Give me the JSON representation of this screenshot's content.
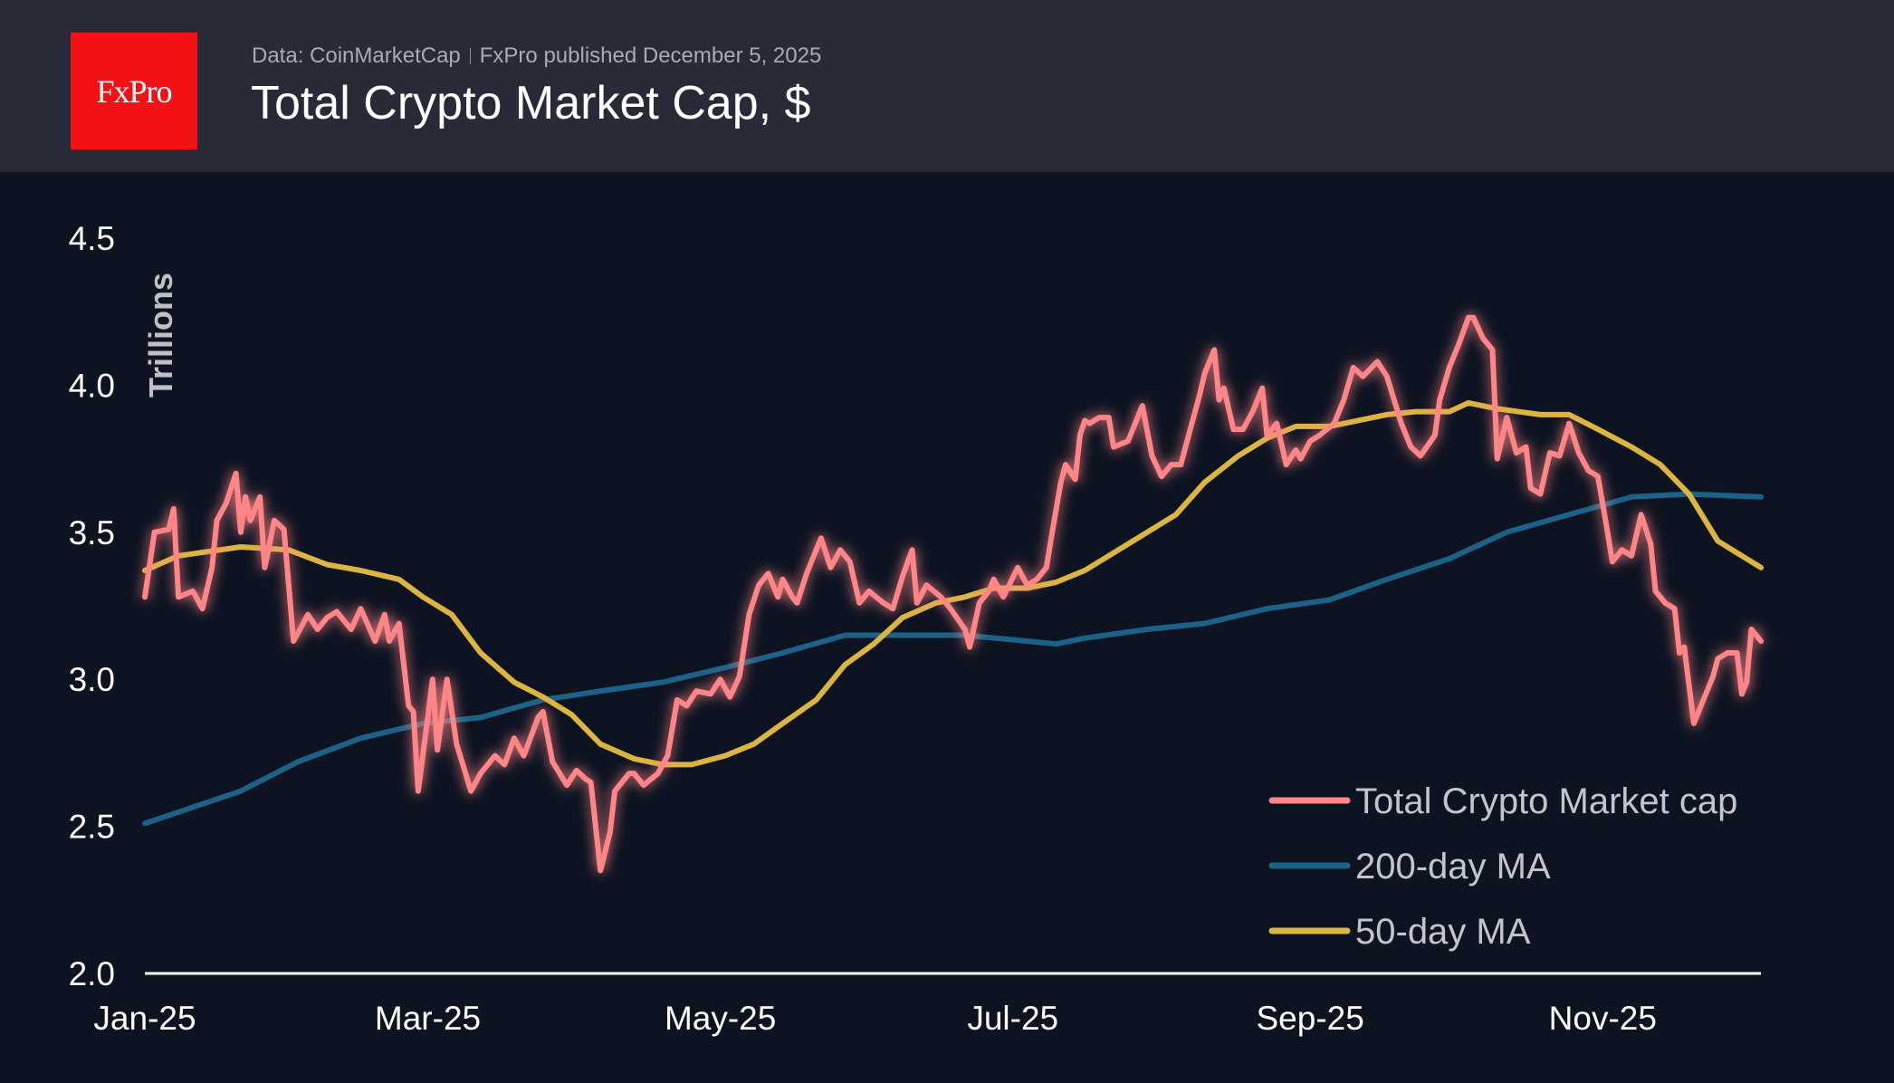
{
  "header": {
    "logo_text": "FxPro",
    "source": "Data: CoinMarketCap",
    "published": "FxPro published December 5, 2025",
    "title": "Total Crypto Market Cap, $"
  },
  "colors": {
    "background": "#0d1321",
    "header": "#282a37",
    "logo": "#f21114",
    "market_cap": "#ff8587",
    "ma200": "#1b6286",
    "ma50": "#dcb440"
  },
  "chart_data": {
    "type": "line",
    "title": "Total Crypto Market Cap, $",
    "ylabel": "Trillions",
    "xlabel": "",
    "ylim": [
      2.0,
      4.5
    ],
    "yticks": [
      "2.0",
      "2.5",
      "3.0",
      "3.5",
      "4.0",
      "4.5"
    ],
    "xticks": [
      {
        "label": "Jan-25",
        "date": "2025-01-01"
      },
      {
        "label": "Mar-25",
        "date": "2025-03-01"
      },
      {
        "label": "May-25",
        "date": "2025-05-01"
      },
      {
        "label": "Jul-25",
        "date": "2025-07-01"
      },
      {
        "label": "Sep-25",
        "date": "2025-09-01"
      },
      {
        "label": "Nov-25",
        "date": "2025-11-01"
      }
    ],
    "grid": false,
    "legend_position": "bottom-right",
    "series": [
      {
        "name": "Total Crypto Market cap",
        "color": "#ff8587",
        "points": [
          [
            "2025-01-01",
            3.28
          ],
          [
            "2025-01-03",
            3.5
          ],
          [
            "2025-01-06",
            3.51
          ],
          [
            "2025-01-07",
            3.58
          ],
          [
            "2025-01-08",
            3.28
          ],
          [
            "2025-01-11",
            3.3
          ],
          [
            "2025-01-13",
            3.24
          ],
          [
            "2025-01-15",
            3.38
          ],
          [
            "2025-01-16",
            3.54
          ],
          [
            "2025-01-18",
            3.6
          ],
          [
            "2025-01-20",
            3.7
          ],
          [
            "2025-01-21",
            3.5
          ],
          [
            "2025-01-22",
            3.62
          ],
          [
            "2025-01-23",
            3.54
          ],
          [
            "2025-01-25",
            3.62
          ],
          [
            "2025-01-26",
            3.38
          ],
          [
            "2025-01-28",
            3.54
          ],
          [
            "2025-01-30",
            3.51
          ],
          [
            "2025-02-01",
            3.13
          ],
          [
            "2025-02-04",
            3.22
          ],
          [
            "2025-02-06",
            3.17
          ],
          [
            "2025-02-08",
            3.21
          ],
          [
            "2025-02-10",
            3.23
          ],
          [
            "2025-02-13",
            3.17
          ],
          [
            "2025-02-15",
            3.24
          ],
          [
            "2025-02-18",
            3.13
          ],
          [
            "2025-02-20",
            3.22
          ],
          [
            "2025-02-21",
            3.13
          ],
          [
            "2025-02-23",
            3.19
          ],
          [
            "2025-02-25",
            2.91
          ],
          [
            "2025-02-26",
            2.89
          ],
          [
            "2025-02-27",
            2.62
          ],
          [
            "2025-03-01",
            2.87
          ],
          [
            "2025-03-02",
            3.0
          ],
          [
            "2025-03-03",
            2.76
          ],
          [
            "2025-03-05",
            3.0
          ],
          [
            "2025-03-07",
            2.78
          ],
          [
            "2025-03-10",
            2.62
          ],
          [
            "2025-03-12",
            2.68
          ],
          [
            "2025-03-15",
            2.74
          ],
          [
            "2025-03-17",
            2.71
          ],
          [
            "2025-03-19",
            2.8
          ],
          [
            "2025-03-21",
            2.74
          ],
          [
            "2025-03-24",
            2.87
          ],
          [
            "2025-03-25",
            2.89
          ],
          [
            "2025-03-27",
            2.72
          ],
          [
            "2025-03-30",
            2.64
          ],
          [
            "2025-04-01",
            2.69
          ],
          [
            "2025-04-03",
            2.66
          ],
          [
            "2025-04-04",
            2.65
          ],
          [
            "2025-04-06",
            2.35
          ],
          [
            "2025-04-08",
            2.48
          ],
          [
            "2025-04-09",
            2.62
          ],
          [
            "2025-04-12",
            2.68
          ],
          [
            "2025-04-13",
            2.68
          ],
          [
            "2025-04-15",
            2.64
          ],
          [
            "2025-04-18",
            2.68
          ],
          [
            "2025-04-20",
            2.74
          ],
          [
            "2025-04-22",
            2.93
          ],
          [
            "2025-04-24",
            2.91
          ],
          [
            "2025-04-26",
            2.96
          ],
          [
            "2025-04-29",
            2.95
          ],
          [
            "2025-05-01",
            3.0
          ],
          [
            "2025-05-03",
            2.94
          ],
          [
            "2025-05-05",
            3.01
          ],
          [
            "2025-05-07",
            3.22
          ],
          [
            "2025-05-09",
            3.32
          ],
          [
            "2025-05-11",
            3.36
          ],
          [
            "2025-05-13",
            3.28
          ],
          [
            "2025-05-14",
            3.34
          ],
          [
            "2025-05-16",
            3.28
          ],
          [
            "2025-05-17",
            3.26
          ],
          [
            "2025-05-19",
            3.36
          ],
          [
            "2025-05-21",
            3.44
          ],
          [
            "2025-05-22",
            3.48
          ],
          [
            "2025-05-24",
            3.38
          ],
          [
            "2025-05-26",
            3.44
          ],
          [
            "2025-05-28",
            3.4
          ],
          [
            "2025-05-30",
            3.26
          ],
          [
            "2025-06-01",
            3.3
          ],
          [
            "2025-06-04",
            3.26
          ],
          [
            "2025-06-06",
            3.24
          ],
          [
            "2025-06-08",
            3.35
          ],
          [
            "2025-06-10",
            3.44
          ],
          [
            "2025-06-11",
            3.26
          ],
          [
            "2025-06-13",
            3.32
          ],
          [
            "2025-06-16",
            3.28
          ],
          [
            "2025-06-18",
            3.24
          ],
          [
            "2025-06-21",
            3.17
          ],
          [
            "2025-06-22",
            3.11
          ],
          [
            "2025-06-24",
            3.26
          ],
          [
            "2025-06-26",
            3.3
          ],
          [
            "2025-06-27",
            3.34
          ],
          [
            "2025-06-29",
            3.28
          ],
          [
            "2025-07-02",
            3.38
          ],
          [
            "2025-07-04",
            3.32
          ],
          [
            "2025-07-06",
            3.34
          ],
          [
            "2025-07-08",
            3.38
          ],
          [
            "2025-07-09",
            3.48
          ],
          [
            "2025-07-11",
            3.67
          ],
          [
            "2025-07-12",
            3.73
          ],
          [
            "2025-07-14",
            3.68
          ],
          [
            "2025-07-15",
            3.83
          ],
          [
            "2025-07-16",
            3.88
          ],
          [
            "2025-07-17",
            3.87
          ],
          [
            "2025-07-19",
            3.89
          ],
          [
            "2025-07-21",
            3.89
          ],
          [
            "2025-07-22",
            3.79
          ],
          [
            "2025-07-25",
            3.81
          ],
          [
            "2025-07-28",
            3.93
          ],
          [
            "2025-07-30",
            3.76
          ],
          [
            "2025-08-01",
            3.69
          ],
          [
            "2025-08-03",
            3.73
          ],
          [
            "2025-08-05",
            3.73
          ],
          [
            "2025-08-07",
            3.85
          ],
          [
            "2025-08-09",
            3.97
          ],
          [
            "2025-08-10",
            4.04
          ],
          [
            "2025-08-12",
            4.12
          ],
          [
            "2025-08-13",
            3.95
          ],
          [
            "2025-08-14",
            3.99
          ],
          [
            "2025-08-16",
            3.85
          ],
          [
            "2025-08-18",
            3.85
          ],
          [
            "2025-08-20",
            3.91
          ],
          [
            "2025-08-22",
            3.99
          ],
          [
            "2025-08-23",
            3.83
          ],
          [
            "2025-08-25",
            3.87
          ],
          [
            "2025-08-27",
            3.73
          ],
          [
            "2025-08-29",
            3.78
          ],
          [
            "2025-08-30",
            3.75
          ],
          [
            "2025-09-01",
            3.81
          ],
          [
            "2025-09-03",
            3.83
          ],
          [
            "2025-09-06",
            3.87
          ],
          [
            "2025-09-08",
            3.95
          ],
          [
            "2025-09-10",
            4.06
          ],
          [
            "2025-09-12",
            4.03
          ],
          [
            "2025-09-15",
            4.08
          ],
          [
            "2025-09-17",
            4.03
          ],
          [
            "2025-09-20",
            3.87
          ],
          [
            "2025-09-22",
            3.79
          ],
          [
            "2025-09-24",
            3.76
          ],
          [
            "2025-09-27",
            3.83
          ],
          [
            "2025-09-28",
            3.95
          ],
          [
            "2025-09-30",
            4.06
          ],
          [
            "2025-10-02",
            4.14
          ],
          [
            "2025-10-04",
            4.23
          ],
          [
            "2025-10-05",
            4.23
          ],
          [
            "2025-10-07",
            4.16
          ],
          [
            "2025-10-09",
            4.12
          ],
          [
            "2025-10-10",
            3.75
          ],
          [
            "2025-10-12",
            3.89
          ],
          [
            "2025-10-14",
            3.77
          ],
          [
            "2025-10-16",
            3.79
          ],
          [
            "2025-10-17",
            3.65
          ],
          [
            "2025-10-19",
            3.63
          ],
          [
            "2025-10-21",
            3.77
          ],
          [
            "2025-10-23",
            3.76
          ],
          [
            "2025-10-25",
            3.87
          ],
          [
            "2025-10-27",
            3.77
          ],
          [
            "2025-10-29",
            3.71
          ],
          [
            "2025-10-31",
            3.69
          ],
          [
            "2025-11-02",
            3.5
          ],
          [
            "2025-11-03",
            3.4
          ],
          [
            "2025-11-05",
            3.44
          ],
          [
            "2025-11-07",
            3.42
          ],
          [
            "2025-11-09",
            3.56
          ],
          [
            "2025-11-11",
            3.46
          ],
          [
            "2025-11-12",
            3.3
          ],
          [
            "2025-11-14",
            3.26
          ],
          [
            "2025-11-16",
            3.24
          ],
          [
            "2025-11-17",
            3.09
          ],
          [
            "2025-11-18",
            3.11
          ],
          [
            "2025-11-20",
            2.85
          ],
          [
            "2025-11-22",
            2.93
          ],
          [
            "2025-11-24",
            3.01
          ],
          [
            "2025-11-25",
            3.07
          ],
          [
            "2025-11-27",
            3.09
          ],
          [
            "2025-11-29",
            3.09
          ],
          [
            "2025-11-30",
            2.95
          ],
          [
            "2025-12-01",
            2.99
          ],
          [
            "2025-12-02",
            3.17
          ],
          [
            "2025-12-04",
            3.13
          ]
        ]
      },
      {
        "name": "200-day MA",
        "color": "#1b6286",
        "points": [
          [
            "2025-01-01",
            2.51
          ],
          [
            "2025-01-21",
            2.62
          ],
          [
            "2025-02-02",
            2.72
          ],
          [
            "2025-02-15",
            2.8
          ],
          [
            "2025-02-28",
            2.85
          ],
          [
            "2025-03-12",
            2.87
          ],
          [
            "2025-03-25",
            2.93
          ],
          [
            "2025-04-06",
            2.96
          ],
          [
            "2025-04-19",
            2.99
          ],
          [
            "2025-05-02",
            3.04
          ],
          [
            "2025-05-14",
            3.09
          ],
          [
            "2025-05-27",
            3.15
          ],
          [
            "2025-06-08",
            3.15
          ],
          [
            "2025-06-21",
            3.15
          ],
          [
            "2025-07-04",
            3.13
          ],
          [
            "2025-07-10",
            3.12
          ],
          [
            "2025-07-16",
            3.14
          ],
          [
            "2025-07-29",
            3.17
          ],
          [
            "2025-08-10",
            3.19
          ],
          [
            "2025-08-23",
            3.24
          ],
          [
            "2025-09-05",
            3.27
          ],
          [
            "2025-09-17",
            3.34
          ],
          [
            "2025-09-30",
            3.41
          ],
          [
            "2025-10-12",
            3.5
          ],
          [
            "2025-10-25",
            3.56
          ],
          [
            "2025-11-07",
            3.62
          ],
          [
            "2025-11-19",
            3.63
          ],
          [
            "2025-12-04",
            3.62
          ]
        ]
      },
      {
        "name": "50-day MA",
        "color": "#dcb440",
        "points": [
          [
            "2025-01-01",
            3.37
          ],
          [
            "2025-01-08",
            3.42
          ],
          [
            "2025-01-21",
            3.45
          ],
          [
            "2025-01-31",
            3.44
          ],
          [
            "2025-02-08",
            3.39
          ],
          [
            "2025-02-15",
            3.37
          ],
          [
            "2025-02-23",
            3.34
          ],
          [
            "2025-02-28",
            3.28
          ],
          [
            "2025-03-06",
            3.22
          ],
          [
            "2025-03-12",
            3.09
          ],
          [
            "2025-03-19",
            2.99
          ],
          [
            "2025-03-25",
            2.94
          ],
          [
            "2025-03-31",
            2.88
          ],
          [
            "2025-04-06",
            2.78
          ],
          [
            "2025-04-13",
            2.73
          ],
          [
            "2025-04-19",
            2.71
          ],
          [
            "2025-04-25",
            2.71
          ],
          [
            "2025-05-02",
            2.74
          ],
          [
            "2025-05-08",
            2.78
          ],
          [
            "2025-05-14",
            2.85
          ],
          [
            "2025-05-21",
            2.93
          ],
          [
            "2025-05-27",
            3.05
          ],
          [
            "2025-06-02",
            3.12
          ],
          [
            "2025-06-08",
            3.21
          ],
          [
            "2025-06-15",
            3.26
          ],
          [
            "2025-06-21",
            3.28
          ],
          [
            "2025-06-27",
            3.31
          ],
          [
            "2025-07-04",
            3.31
          ],
          [
            "2025-07-10",
            3.33
          ],
          [
            "2025-07-16",
            3.37
          ],
          [
            "2025-07-23",
            3.44
          ],
          [
            "2025-07-29",
            3.5
          ],
          [
            "2025-08-04",
            3.56
          ],
          [
            "2025-08-10",
            3.67
          ],
          [
            "2025-08-17",
            3.76
          ],
          [
            "2025-08-23",
            3.82
          ],
          [
            "2025-08-29",
            3.86
          ],
          [
            "2025-09-05",
            3.86
          ],
          [
            "2025-09-11",
            3.88
          ],
          [
            "2025-09-17",
            3.9
          ],
          [
            "2025-09-23",
            3.91
          ],
          [
            "2025-09-30",
            3.91
          ],
          [
            "2025-10-04",
            3.94
          ],
          [
            "2025-10-10",
            3.92
          ],
          [
            "2025-10-19",
            3.9
          ],
          [
            "2025-10-25",
            3.9
          ],
          [
            "2025-10-31",
            3.85
          ],
          [
            "2025-11-07",
            3.79
          ],
          [
            "2025-11-13",
            3.73
          ],
          [
            "2025-11-19",
            3.63
          ],
          [
            "2025-11-25",
            3.47
          ],
          [
            "2025-12-04",
            3.38
          ]
        ]
      }
    ]
  }
}
